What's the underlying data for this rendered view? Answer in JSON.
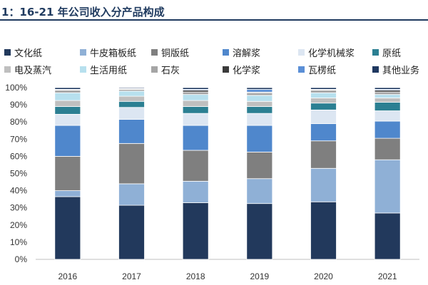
{
  "chart_data": {
    "type": "bar",
    "stacked": true,
    "title": "1：16-21 年公司收入分产品构成",
    "categories": [
      "2016",
      "2017",
      "2018",
      "2019",
      "2020",
      "2021"
    ],
    "ylim": [
      0,
      100
    ],
    "yticks": [
      "0%",
      "10%",
      "20%",
      "30%",
      "40%",
      "50%",
      "60%",
      "70%",
      "80%",
      "90%",
      "100%"
    ],
    "series": [
      {
        "name": "文化纸",
        "color": "#22395c",
        "values": [
          36.5,
          31.5,
          33,
          32.5,
          33.5,
          27
        ]
      },
      {
        "name": "牛皮箱板纸",
        "color": "#8fb0d6",
        "values": [
          3.5,
          12.5,
          12.5,
          14.5,
          19.5,
          31
        ]
      },
      {
        "name": "铜版纸",
        "color": "#7f7f7f",
        "values": [
          20,
          23.5,
          18,
          15.5,
          16,
          12.5
        ]
      },
      {
        "name": "溶解浆",
        "color": "#4f87cc",
        "values": [
          18,
          14,
          14.5,
          15.5,
          10,
          10
        ]
      },
      {
        "name": "化学机械浆",
        "color": "#dce6f2",
        "values": [
          6.5,
          7,
          7,
          7,
          8,
          6
        ]
      },
      {
        "name": "原纸",
        "color": "#2b7f92",
        "values": [
          4.5,
          3.5,
          4,
          4,
          4,
          5
        ]
      },
      {
        "name": "电及蒸汽",
        "color": "#bfbfbf",
        "values": [
          3.5,
          3,
          3.5,
          3,
          3,
          2.5
        ]
      },
      {
        "name": "生活用纸",
        "color": "#b7e0ee",
        "values": [
          4.5,
          3,
          3.5,
          3.5,
          3,
          2
        ]
      },
      {
        "name": "石灰",
        "color": "#a5a5a5",
        "values": [
          1.5,
          1,
          1.5,
          1.5,
          1.5,
          1.5
        ]
      },
      {
        "name": "化学浆",
        "color": "#3b3b3b",
        "values": [
          0.2,
          0.3,
          1,
          0.4,
          0.3,
          1
        ]
      },
      {
        "name": "瓦楞纸",
        "color": "#5b8fd6",
        "values": [
          0.3,
          0.2,
          0.5,
          1.6,
          0.2,
          0.5
        ]
      },
      {
        "name": "其他业务",
        "color": "#1f3860",
        "values": [
          1,
          0.5,
          1,
          1,
          1,
          1
        ]
      }
    ]
  }
}
